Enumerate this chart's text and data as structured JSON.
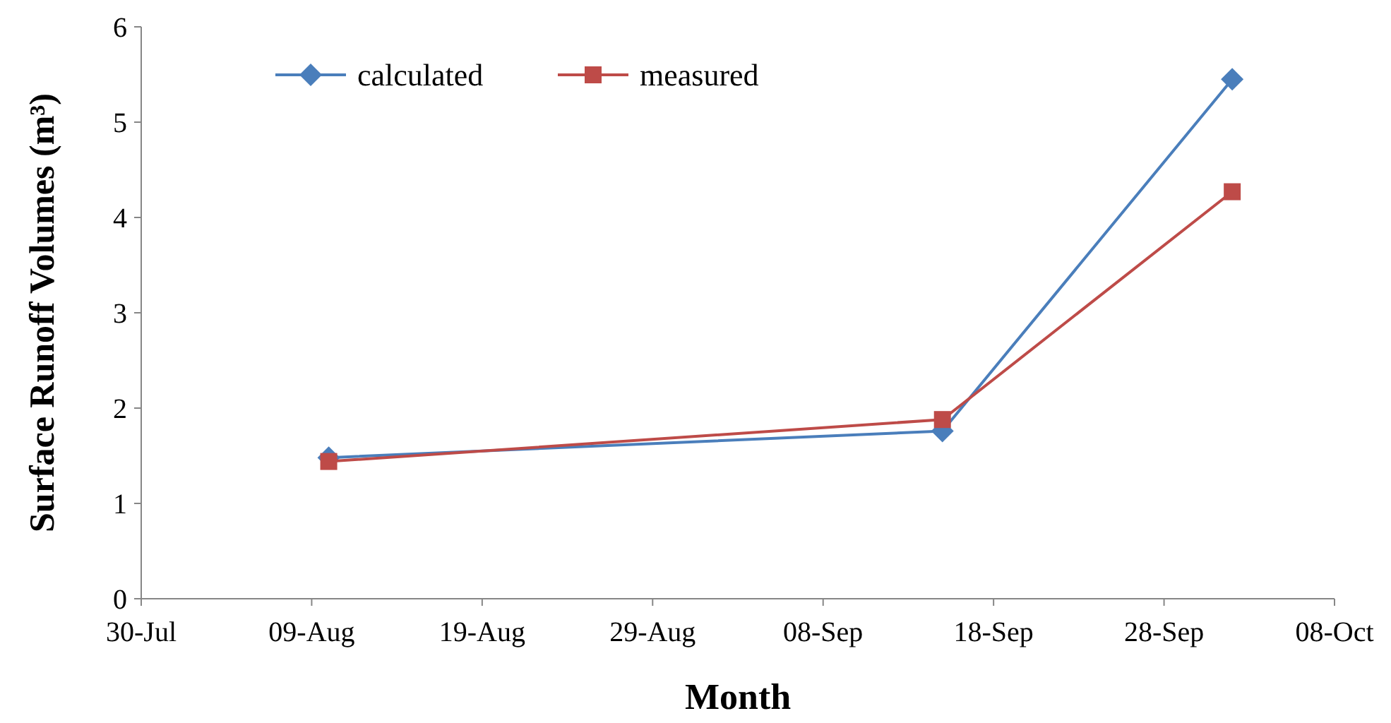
{
  "chart_data": {
    "type": "line",
    "xlabel": "Month",
    "ylabel": "Surface Runoff Volumes (m³)",
    "x": [
      "--08-10",
      "--09-15",
      "--10-02"
    ],
    "series": [
      {
        "name": "calculated",
        "color": "#4a7ebb",
        "marker": "diamond",
        "values": [
          1.48,
          1.76,
          5.45
        ]
      },
      {
        "name": "measured",
        "color": "#be4b48",
        "marker": "square",
        "values": [
          1.44,
          1.88,
          4.27
        ]
      }
    ],
    "xlim": [
      "--07-30",
      "--10-08"
    ],
    "xticks": [
      {
        "value": "--07-30",
        "label": "30-Jul"
      },
      {
        "value": "--08-09",
        "label": "09-Aug"
      },
      {
        "value": "--08-19",
        "label": "19-Aug"
      },
      {
        "value": "--08-29",
        "label": "29-Aug"
      },
      {
        "value": "--09-08",
        "label": "08-Sep"
      },
      {
        "value": "--09-18",
        "label": "18-Sep"
      },
      {
        "value": "--09-28",
        "label": "28-Sep"
      },
      {
        "value": "--10-08",
        "label": "08-Oct"
      }
    ],
    "ylim": [
      0,
      6
    ],
    "yticks": [
      0,
      1,
      2,
      3,
      4,
      5,
      6
    ],
    "grid": false,
    "legend": "top left",
    "line_style": "solid"
  }
}
